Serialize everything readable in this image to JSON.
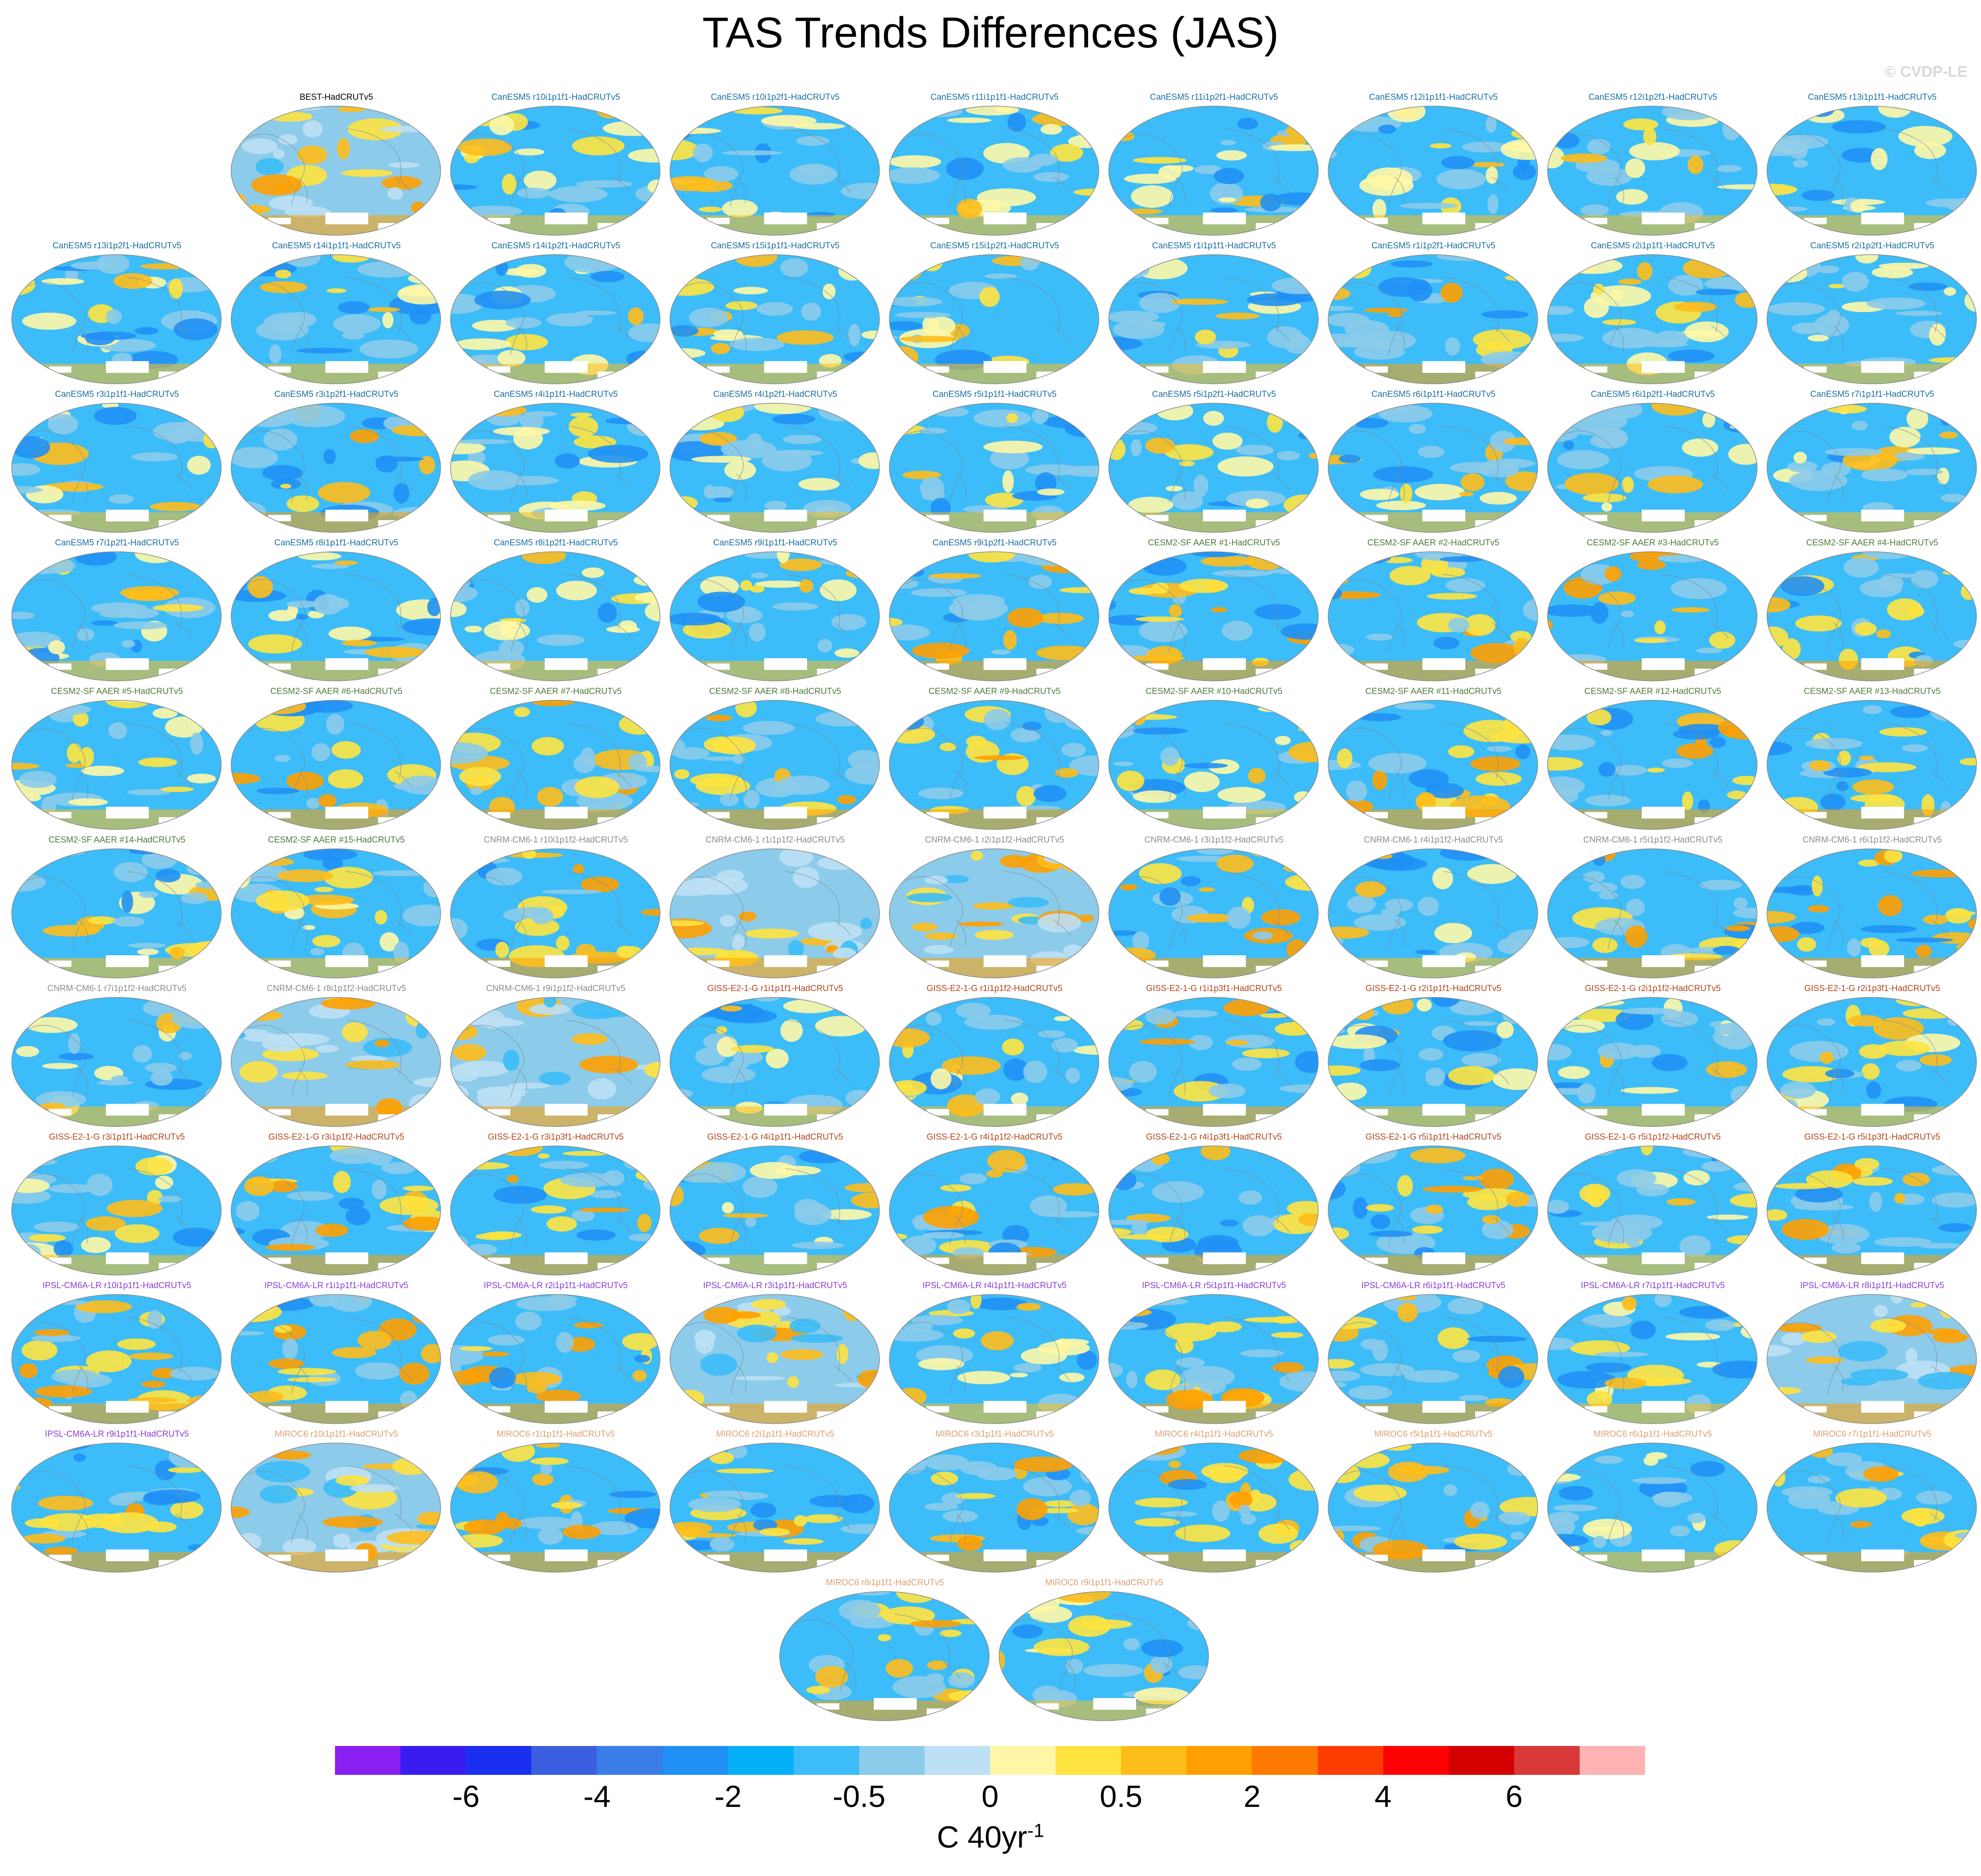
{
  "title": "TAS Trends Differences (JAS)",
  "copyright": "© CVDP-LE",
  "panels": [
    {
      "label": "BEST-HadCRUTv5",
      "color": "#000000",
      "variant": "warm",
      "row": 0,
      "col": 1
    },
    {
      "label": "CanESM5 r10i1p1f1-HadCRUTv5",
      "color": "#1a6fa3",
      "variant": "cool",
      "row": 0,
      "col": 2
    },
    {
      "label": "CanESM5 r10i1p2f1-HadCRUTv5",
      "color": "#1a6fa3",
      "variant": "cool",
      "row": 0,
      "col": 3
    },
    {
      "label": "CanESM5 r11i1p1f1-HadCRUTv5",
      "color": "#1a6fa3",
      "variant": "cool",
      "row": 0,
      "col": 4
    },
    {
      "label": "CanESM5 r11i1p2f1-HadCRUTv5",
      "color": "#1a6fa3",
      "variant": "cool",
      "row": 0,
      "col": 5
    },
    {
      "label": "CanESM5 r12i1p1f1-HadCRUTv5",
      "color": "#1a6fa3",
      "variant": "cool",
      "row": 0,
      "col": 6
    },
    {
      "label": "CanESM5 r12i1p2f1-HadCRUTv5",
      "color": "#1a6fa3",
      "variant": "cool",
      "row": 0,
      "col": 7
    },
    {
      "label": "CanESM5 r13i1p1f1-HadCRUTv5",
      "color": "#1a6fa3",
      "variant": "cool",
      "row": 0,
      "col": 8
    },
    {
      "label": "CanESM5 r13i1p2f1-HadCRUTv5",
      "color": "#1a6fa3",
      "variant": "cool",
      "row": 1,
      "col": 0
    },
    {
      "label": "CanESM5 r14i1p1f1-HadCRUTv5",
      "color": "#1a6fa3",
      "variant": "cool",
      "row": 1,
      "col": 1
    },
    {
      "label": "CanESM5 r14i1p2f1-HadCRUTv5",
      "color": "#1a6fa3",
      "variant": "cool",
      "row": 1,
      "col": 2
    },
    {
      "label": "CanESM5 r15i1p1f1-HadCRUTv5",
      "color": "#1a6fa3",
      "variant": "cool",
      "row": 1,
      "col": 3
    },
    {
      "label": "CanESM5 r15i1p2f1-HadCRUTv5",
      "color": "#1a6fa3",
      "variant": "cool",
      "row": 1,
      "col": 4
    },
    {
      "label": "CanESM5 r1i1p1f1-HadCRUTv5",
      "color": "#1a6fa3",
      "variant": "cool",
      "row": 1,
      "col": 5
    },
    {
      "label": "CanESM5 r1i1p2f1-HadCRUTv5",
      "color": "#1a6fa3",
      "variant": "mixed",
      "row": 1,
      "col": 6
    },
    {
      "label": "CanESM5 r2i1p1f1-HadCRUTv5",
      "color": "#1a6fa3",
      "variant": "cool",
      "row": 1,
      "col": 7
    },
    {
      "label": "CanESM5 r2i1p2f1-HadCRUTv5",
      "color": "#1a6fa3",
      "variant": "cool",
      "row": 1,
      "col": 8
    },
    {
      "label": "CanESM5 r3i1p1f1-HadCRUTv5",
      "color": "#1a6fa3",
      "variant": "cool",
      "row": 2,
      "col": 0
    },
    {
      "label": "CanESM5 r3i1p2f1-HadCRUTv5",
      "color": "#1a6fa3",
      "variant": "mixed",
      "row": 2,
      "col": 1
    },
    {
      "label": "CanESM5 r4i1p1f1-HadCRUTv5",
      "color": "#1a6fa3",
      "variant": "cool",
      "row": 2,
      "col": 2
    },
    {
      "label": "CanESM5 r4i1p2f1-HadCRUTv5",
      "color": "#1a6fa3",
      "variant": "cool",
      "row": 2,
      "col": 3
    },
    {
      "label": "CanESM5 r5i1p1f1-HadCRUTv5",
      "color": "#1a6fa3",
      "variant": "cool",
      "row": 2,
      "col": 4
    },
    {
      "label": "CanESM5 r5i1p2f1-HadCRUTv5",
      "color": "#1a6fa3",
      "variant": "cool",
      "row": 2,
      "col": 5
    },
    {
      "label": "CanESM5 r6i1p1f1-HadCRUTv5",
      "color": "#1a6fa3",
      "variant": "cool",
      "row": 2,
      "col": 6
    },
    {
      "label": "CanESM5 r6i1p2f1-HadCRUTv5",
      "color": "#1a6fa3",
      "variant": "cool",
      "row": 2,
      "col": 7
    },
    {
      "label": "CanESM5 r7i1p1f1-HadCRUTv5",
      "color": "#1a6fa3",
      "variant": "cool",
      "row": 2,
      "col": 8
    },
    {
      "label": "CanESM5 r7i1p2f1-HadCRUTv5",
      "color": "#1a6fa3",
      "variant": "cool",
      "row": 3,
      "col": 0
    },
    {
      "label": "CanESM5 r8i1p1f1-HadCRUTv5",
      "color": "#1a6fa3",
      "variant": "cool",
      "row": 3,
      "col": 1
    },
    {
      "label": "CanESM5 r8i1p2f1-HadCRUTv5",
      "color": "#1a6fa3",
      "variant": "cool",
      "row": 3,
      "col": 2
    },
    {
      "label": "CanESM5 r9i1p1f1-HadCRUTv5",
      "color": "#1a6fa3",
      "variant": "cool",
      "row": 3,
      "col": 3
    },
    {
      "label": "CanESM5 r9i1p2f1-HadCRUTv5",
      "color": "#1a6fa3",
      "variant": "mixed",
      "row": 3,
      "col": 4
    },
    {
      "label": "CESM2-SF AAER #1-HadCRUTv5",
      "color": "#4f7a3a",
      "variant": "mixed",
      "row": 3,
      "col": 5
    },
    {
      "label": "CESM2-SF AAER #2-HadCRUTv5",
      "color": "#4f7a3a",
      "variant": "mixed",
      "row": 3,
      "col": 6
    },
    {
      "label": "CESM2-SF AAER #3-HadCRUTv5",
      "color": "#4f7a3a",
      "variant": "mixed",
      "row": 3,
      "col": 7
    },
    {
      "label": "CESM2-SF AAER #4-HadCRUTv5",
      "color": "#4f7a3a",
      "variant": "mixed",
      "row": 3,
      "col": 8
    },
    {
      "label": "CESM2-SF AAER #5-HadCRUTv5",
      "color": "#4f7a3a",
      "variant": "cool",
      "row": 4,
      "col": 0
    },
    {
      "label": "CESM2-SF AAER #6-HadCRUTv5",
      "color": "#4f7a3a",
      "variant": "mixed",
      "row": 4,
      "col": 1
    },
    {
      "label": "CESM2-SF AAER #7-HadCRUTv5",
      "color": "#4f7a3a",
      "variant": "mixed",
      "row": 4,
      "col": 2
    },
    {
      "label": "CESM2-SF AAER #8-HadCRUTv5",
      "color": "#4f7a3a",
      "variant": "mixed",
      "row": 4,
      "col": 3
    },
    {
      "label": "CESM2-SF AAER #9-HadCRUTv5",
      "color": "#4f7a3a",
      "variant": "mixed",
      "row": 4,
      "col": 4
    },
    {
      "label": "CESM2-SF AAER #10-HadCRUTv5",
      "color": "#4f7a3a",
      "variant": "cool",
      "row": 4,
      "col": 5
    },
    {
      "label": "CESM2-SF AAER #11-HadCRUTv5",
      "color": "#4f7a3a",
      "variant": "mixed",
      "row": 4,
      "col": 6
    },
    {
      "label": "CESM2-SF AAER #12-HadCRUTv5",
      "color": "#4f7a3a",
      "variant": "mixed",
      "row": 4,
      "col": 7
    },
    {
      "label": "CESM2-SF AAER #13-HadCRUTv5",
      "color": "#4f7a3a",
      "variant": "mixed",
      "row": 4,
      "col": 8
    },
    {
      "label": "CESM2-SF AAER #14-HadCRUTv5",
      "color": "#4f7a3a",
      "variant": "cool",
      "row": 5,
      "col": 0
    },
    {
      "label": "CESM2-SF AAER #15-HadCRUTv5",
      "color": "#4f7a3a",
      "variant": "cool",
      "row": 5,
      "col": 1
    },
    {
      "label": "CNRM-CM6-1 r10i1p1f2-HadCRUTv5",
      "color": "#8c8c8c",
      "variant": "mixed",
      "row": 5,
      "col": 2
    },
    {
      "label": "CNRM-CM6-1 r1i1p1f2-HadCRUTv5",
      "color": "#8c8c8c",
      "variant": "warm",
      "row": 5,
      "col": 3
    },
    {
      "label": "CNRM-CM6-1 r2i1p1f2-HadCRUTv5",
      "color": "#8c8c8c",
      "variant": "warm",
      "row": 5,
      "col": 4
    },
    {
      "label": "CNRM-CM6-1 r3i1p1f2-HadCRUTv5",
      "color": "#8c8c8c",
      "variant": "mixed",
      "row": 5,
      "col": 5
    },
    {
      "label": "CNRM-CM6-1 r4i1p1f2-HadCRUTv5",
      "color": "#8c8c8c",
      "variant": "cool",
      "row": 5,
      "col": 6
    },
    {
      "label": "CNRM-CM6-1 r5i1p1f2-HadCRUTv5",
      "color": "#8c8c8c",
      "variant": "mixed",
      "row": 5,
      "col": 7
    },
    {
      "label": "CNRM-CM6-1 r6i1p1f2-HadCRUTv5",
      "color": "#8c8c8c",
      "variant": "mixed",
      "row": 5,
      "col": 8
    },
    {
      "label": "CNRM-CM6-1 r7i1p1f2-HadCRUTv5",
      "color": "#8c8c8c",
      "variant": "cool",
      "row": 6,
      "col": 0
    },
    {
      "label": "CNRM-CM6-1 r8i1p1f2-HadCRUTv5",
      "color": "#8c8c8c",
      "variant": "warm",
      "row": 6,
      "col": 1
    },
    {
      "label": "CNRM-CM6-1 r9i1p1f2-HadCRUTv5",
      "color": "#8c8c8c",
      "variant": "warm",
      "row": 6,
      "col": 2
    },
    {
      "label": "GISS-E2-1-G r1i1p1f1-HadCRUTv5",
      "color": "#b0461e",
      "variant": "cool",
      "row": 6,
      "col": 3
    },
    {
      "label": "GISS-E2-1-G r1i1p1f2-HadCRUTv5",
      "color": "#b0461e",
      "variant": "cool",
      "row": 6,
      "col": 4
    },
    {
      "label": "GISS-E2-1-G r1i1p3f1-HadCRUTv5",
      "color": "#b0461e",
      "variant": "mixed",
      "row": 6,
      "col": 5
    },
    {
      "label": "GISS-E2-1-G r2i1p1f1-HadCRUTv5",
      "color": "#b0461e",
      "variant": "cool",
      "row": 6,
      "col": 6
    },
    {
      "label": "GISS-E2-1-G r2i1p1f2-HadCRUTv5",
      "color": "#b0461e",
      "variant": "cool",
      "row": 6,
      "col": 7
    },
    {
      "label": "GISS-E2-1-G r2i1p3f1-HadCRUTv5",
      "color": "#b0461e",
      "variant": "cool",
      "row": 6,
      "col": 8
    },
    {
      "label": "GISS-E2-1-G r3i1p1f1-HadCRUTv5",
      "color": "#b0461e",
      "variant": "cool",
      "row": 7,
      "col": 0
    },
    {
      "label": "GISS-E2-1-G r3i1p1f2-HadCRUTv5",
      "color": "#b0461e",
      "variant": "mixed",
      "row": 7,
      "col": 1
    },
    {
      "label": "GISS-E2-1-G r3i1p3f1-HadCRUTv5",
      "color": "#b0461e",
      "variant": "mixed",
      "row": 7,
      "col": 2
    },
    {
      "label": "GISS-E2-1-G r4i1p1f1-HadCRUTv5",
      "color": "#b0461e",
      "variant": "cool",
      "row": 7,
      "col": 3
    },
    {
      "label": "GISS-E2-1-G r4i1p1f2-HadCRUTv5",
      "color": "#b0461e",
      "variant": "mixed",
      "row": 7,
      "col": 4
    },
    {
      "label": "GISS-E2-1-G r4i1p3f1-HadCRUTv5",
      "color": "#b0461e",
      "variant": "mixed",
      "row": 7,
      "col": 5
    },
    {
      "label": "GISS-E2-1-G r5i1p1f1-HadCRUTv5",
      "color": "#b0461e",
      "variant": "mixed",
      "row": 7,
      "col": 6
    },
    {
      "label": "GISS-E2-1-G r5i1p1f2-HadCRUTv5",
      "color": "#b0461e",
      "variant": "cool",
      "row": 7,
      "col": 7
    },
    {
      "label": "GISS-E2-1-G r5i1p3f1-HadCRUTv5",
      "color": "#b0461e",
      "variant": "mixed",
      "row": 7,
      "col": 8
    },
    {
      "label": "IPSL-CM6A-LR r10i1p1f1-HadCRUTv5",
      "color": "#8a3fd6",
      "variant": "mixed",
      "row": 8,
      "col": 0
    },
    {
      "label": "IPSL-CM6A-LR r1i1p1f1-HadCRUTv5",
      "color": "#8a3fd6",
      "variant": "mixed",
      "row": 8,
      "col": 1
    },
    {
      "label": "IPSL-CM6A-LR r2i1p1f1-HadCRUTv5",
      "color": "#8a3fd6",
      "variant": "mixed",
      "row": 8,
      "col": 2
    },
    {
      "label": "IPSL-CM6A-LR r3i1p1f1-HadCRUTv5",
      "color": "#8a3fd6",
      "variant": "warm",
      "row": 8,
      "col": 3
    },
    {
      "label": "IPSL-CM6A-LR r4i1p1f1-HadCRUTv5",
      "color": "#8a3fd6",
      "variant": "cool",
      "row": 8,
      "col": 4
    },
    {
      "label": "IPSL-CM6A-LR r5i1p1f1-HadCRUTv5",
      "color": "#8a3fd6",
      "variant": "mixed",
      "row": 8,
      "col": 5
    },
    {
      "label": "IPSL-CM6A-LR r6i1p1f1-HadCRUTv5",
      "color": "#8a3fd6",
      "variant": "mixed",
      "row": 8,
      "col": 6
    },
    {
      "label": "IPSL-CM6A-LR r7i1p1f1-HadCRUTv5",
      "color": "#8a3fd6",
      "variant": "cool",
      "row": 8,
      "col": 7
    },
    {
      "label": "IPSL-CM6A-LR r8i1p1f1-HadCRUTv5",
      "color": "#8a3fd6",
      "variant": "warm",
      "row": 8,
      "col": 8
    },
    {
      "label": "IPSL-CM6A-LR r9i1p1f1-HadCRUTv5",
      "color": "#8a3fd6",
      "variant": "mixed",
      "row": 9,
      "col": 0
    },
    {
      "label": "MIROC6 r10i1p1f1-HadCRUTv5",
      "color": "#e0a070",
      "variant": "warm",
      "row": 9,
      "col": 1
    },
    {
      "label": "MIROC6 r1i1p1f1-HadCRUTv5",
      "color": "#e0a070",
      "variant": "mixed",
      "row": 9,
      "col": 2
    },
    {
      "label": "MIROC6 r2i1p1f1-HadCRUTv5",
      "color": "#e0a070",
      "variant": "mixed",
      "row": 9,
      "col": 3
    },
    {
      "label": "MIROC6 r3i1p1f1-HadCRUTv5",
      "color": "#e0a070",
      "variant": "mixed",
      "row": 9,
      "col": 4
    },
    {
      "label": "MIROC6 r4i1p1f1-HadCRUTv5",
      "color": "#e0a070",
      "variant": "mixed",
      "row": 9,
      "col": 5
    },
    {
      "label": "MIROC6 r5i1p1f1-HadCRUTv5",
      "color": "#e0a070",
      "variant": "mixed",
      "row": 9,
      "col": 6
    },
    {
      "label": "MIROC6 r6i1p1f1-HadCRUTv5",
      "color": "#e0a070",
      "variant": "cool",
      "row": 9,
      "col": 7
    },
    {
      "label": "MIROC6 r7i1p1f1-HadCRUTv5",
      "color": "#e0a070",
      "variant": "mixed",
      "row": 9,
      "col": 8
    },
    {
      "label": "MIROC6 r8i1p1f1-HadCRUTv5",
      "color": "#e0a070",
      "variant": "mixed",
      "row": 10,
      "col": 3.5
    },
    {
      "label": "MIROC6 r9i1p1f1-HadCRUTv5",
      "color": "#e0a070",
      "variant": "cool",
      "row": 10,
      "col": 4.5
    }
  ],
  "colorbar": {
    "colors": [
      "#8a1ff0",
      "#3b1cf0",
      "#1a2ff0",
      "#3b5fe0",
      "#3a7de8",
      "#1f90f5",
      "#06b0f8",
      "#3cbcf8",
      "#8ccbea",
      "#bde0f4",
      "#fff7a6",
      "#ffe340",
      "#ffbd1a",
      "#ffa000",
      "#ff7a00",
      "#ff3c00",
      "#ff0000",
      "#d40000",
      "#d83838",
      "#ffb3b3"
    ],
    "tick_labels": [
      "-6",
      "-4",
      "-2",
      "-0.5",
      "0",
      "0.5",
      "2",
      "4",
      "6"
    ],
    "tick_boundaries": [
      2,
      4,
      6,
      8,
      10,
      12,
      14,
      16,
      18
    ],
    "units_base": "C 40yr",
    "units_exp": "-1"
  }
}
